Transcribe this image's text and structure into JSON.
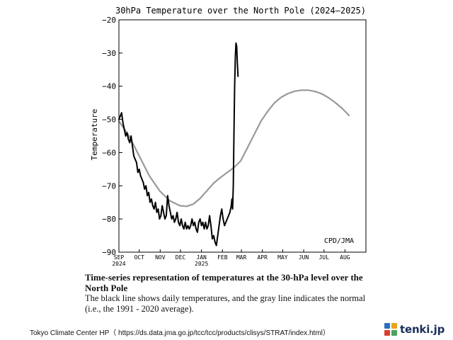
{
  "chart_data": {
    "type": "line",
    "title": "30hPa Temperature over the North Pole (2024–2025)",
    "ylabel": "Temperature",
    "xlabel": "",
    "ylim": [
      -90,
      -20
    ],
    "yticks": [
      -90,
      -80,
      -70,
      -60,
      -50,
      -40,
      -30,
      -20
    ],
    "ytick_labels": [
      "−90",
      "−80",
      "−70",
      "−60",
      "−50",
      "−40",
      "−30",
      "−20"
    ],
    "x_unit": "days since 1 Sep 2024",
    "xlim": [
      0,
      365
    ],
    "month_ticks": [
      {
        "label": "SEP",
        "sub": "2024",
        "day": 0
      },
      {
        "label": "OCT",
        "sub": "",
        "day": 30
      },
      {
        "label": "NOV",
        "sub": "",
        "day": 61
      },
      {
        "label": "DEC",
        "sub": "",
        "day": 91
      },
      {
        "label": "JAN",
        "sub": "2025",
        "day": 122
      },
      {
        "label": "FEB",
        "sub": "",
        "day": 153
      },
      {
        "label": "MAR",
        "sub": "",
        "day": 181
      },
      {
        "label": "APR",
        "sub": "",
        "day": 212
      },
      {
        "label": "MAY",
        "sub": "",
        "day": 242
      },
      {
        "label": "JUN",
        "sub": "",
        "day": 273
      },
      {
        "label": "JUL",
        "sub": "",
        "day": 303
      },
      {
        "label": "AUG",
        "sub": "",
        "day": 334
      }
    ],
    "annotation": "CPD/JMA",
    "series": [
      {
        "name": "Daily temperature",
        "color": "#000000",
        "points": [
          [
            0,
            -50
          ],
          [
            2,
            -49
          ],
          [
            4,
            -48
          ],
          [
            6,
            -51
          ],
          [
            8,
            -53
          ],
          [
            10,
            -55
          ],
          [
            12,
            -54
          ],
          [
            14,
            -56
          ],
          [
            16,
            -57
          ],
          [
            18,
            -55
          ],
          [
            20,
            -58
          ],
          [
            22,
            -61
          ],
          [
            24,
            -62
          ],
          [
            26,
            -63
          ],
          [
            28,
            -66
          ],
          [
            30,
            -65
          ],
          [
            32,
            -67
          ],
          [
            34,
            -68
          ],
          [
            36,
            -69
          ],
          [
            38,
            -71
          ],
          [
            40,
            -70
          ],
          [
            42,
            -73
          ],
          [
            44,
            -72
          ],
          [
            46,
            -75
          ],
          [
            48,
            -74
          ],
          [
            50,
            -76
          ],
          [
            52,
            -77
          ],
          [
            54,
            -75
          ],
          [
            56,
            -78
          ],
          [
            58,
            -77
          ],
          [
            60,
            -80
          ],
          [
            62,
            -79
          ],
          [
            64,
            -76
          ],
          [
            66,
            -78
          ],
          [
            68,
            -80
          ],
          [
            70,
            -79
          ],
          [
            72,
            -73
          ],
          [
            74,
            -76
          ],
          [
            76,
            -78
          ],
          [
            78,
            -80
          ],
          [
            80,
            -79
          ],
          [
            82,
            -81
          ],
          [
            84,
            -80
          ],
          [
            86,
            -78
          ],
          [
            88,
            -81
          ],
          [
            90,
            -82
          ],
          [
            92,
            -80
          ],
          [
            94,
            -82
          ],
          [
            96,
            -83
          ],
          [
            98,
            -81
          ],
          [
            100,
            -83
          ],
          [
            102,
            -82
          ],
          [
            104,
            -83
          ],
          [
            106,
            -82
          ],
          [
            108,
            -80
          ],
          [
            110,
            -82
          ],
          [
            112,
            -81
          ],
          [
            114,
            -83
          ],
          [
            116,
            -84
          ],
          [
            118,
            -81
          ],
          [
            120,
            -80
          ],
          [
            122,
            -82
          ],
          [
            124,
            -81
          ],
          [
            126,
            -83
          ],
          [
            128,
            -81
          ],
          [
            130,
            -83
          ],
          [
            132,
            -82
          ],
          [
            134,
            -79
          ],
          [
            136,
            -82
          ],
          [
            138,
            -86
          ],
          [
            140,
            -85
          ],
          [
            142,
            -87
          ],
          [
            144,
            -88
          ],
          [
            146,
            -85
          ],
          [
            148,
            -82
          ],
          [
            150,
            -79
          ],
          [
            152,
            -77
          ],
          [
            154,
            -80
          ],
          [
            156,
            -82
          ],
          [
            158,
            -81
          ],
          [
            160,
            -80
          ],
          [
            162,
            -79
          ],
          [
            164,
            -78
          ],
          [
            166,
            -76
          ],
          [
            167,
            -74
          ],
          [
            168,
            -77
          ],
          [
            169,
            -70
          ],
          [
            170,
            -55
          ],
          [
            171,
            -40
          ],
          [
            172,
            -31
          ],
          [
            173,
            -27
          ],
          [
            174,
            -28
          ],
          [
            175,
            -33
          ],
          [
            176,
            -37
          ]
        ]
      },
      {
        "name": "Normal (1991-2020 average)",
        "color": "#999999",
        "points": [
          [
            0,
            -50.5
          ],
          [
            15,
            -55
          ],
          [
            30,
            -61
          ],
          [
            45,
            -67
          ],
          [
            60,
            -71.5
          ],
          [
            75,
            -74.5
          ],
          [
            90,
            -76
          ],
          [
            100,
            -76.2
          ],
          [
            110,
            -75.5
          ],
          [
            120,
            -73.8
          ],
          [
            130,
            -71.5
          ],
          [
            140,
            -69.2
          ],
          [
            150,
            -67.5
          ],
          [
            160,
            -66
          ],
          [
            170,
            -64.5
          ],
          [
            180,
            -62.5
          ],
          [
            190,
            -58.5
          ],
          [
            200,
            -54.5
          ],
          [
            210,
            -50.5
          ],
          [
            220,
            -47.5
          ],
          [
            230,
            -45
          ],
          [
            240,
            -43.3
          ],
          [
            250,
            -42.2
          ],
          [
            260,
            -41.5
          ],
          [
            270,
            -41.2
          ],
          [
            280,
            -41.2
          ],
          [
            290,
            -41.6
          ],
          [
            300,
            -42.3
          ],
          [
            310,
            -43.5
          ],
          [
            320,
            -45
          ],
          [
            330,
            -46.7
          ],
          [
            340,
            -48.8
          ]
        ]
      }
    ]
  },
  "caption": {
    "title": "Time-series representation of temperatures at the 30-hPa level over the North Pole",
    "body": "The black line shows daily temperatures, and the gray line indicates the normal (i.e., the 1991 - 2020 average)."
  },
  "source": "Tokyo Climate Center HP（ https://ds.data.jma.go.jp/tcc/tcc/products/clisys/STRAT/index.html）",
  "logo": {
    "text": "tenki.jp",
    "icon": "tenki-logo-icon"
  }
}
